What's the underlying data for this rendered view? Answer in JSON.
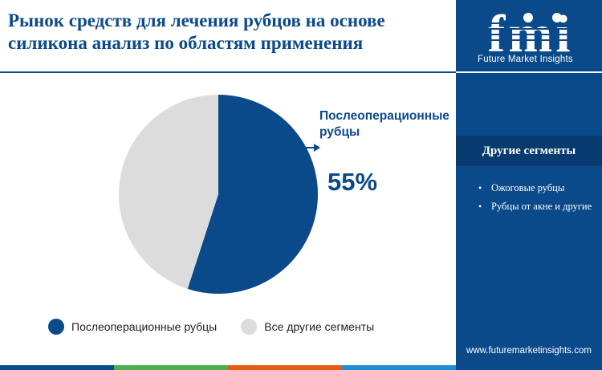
{
  "title": "Рынок средств для лечения рубцов на основе силикона анализ по областям применения",
  "brand": {
    "logo_text": "fmi",
    "name": "Future Market Insights",
    "website": "www.futuremarketinsights.com"
  },
  "sidebar": {
    "header": "Другие сегменты",
    "items": [
      "Ожоговые рубцы",
      "Рубцы от акне и другие"
    ]
  },
  "callout": {
    "label": "Послеоперационные рубцы",
    "value": "55%"
  },
  "colors": {
    "primary": "#0b4a8a",
    "other": "#dcdcdc",
    "sidebar": "#0b4a8a",
    "bottom_bar": [
      "#0b4a8a",
      "#4caf50",
      "#e55b13",
      "#1e8fd5"
    ]
  },
  "chart_data": {
    "type": "pie",
    "slices": [
      {
        "label": "Послеоперационные рубцы",
        "value": 55,
        "color": "#0b4a8a"
      },
      {
        "label": "Все другие сегменты",
        "value": 45,
        "color": "#dcdcdc"
      }
    ],
    "start_angle": "12 o'clock",
    "direction": "clockwise",
    "legend_position": "bottom"
  }
}
